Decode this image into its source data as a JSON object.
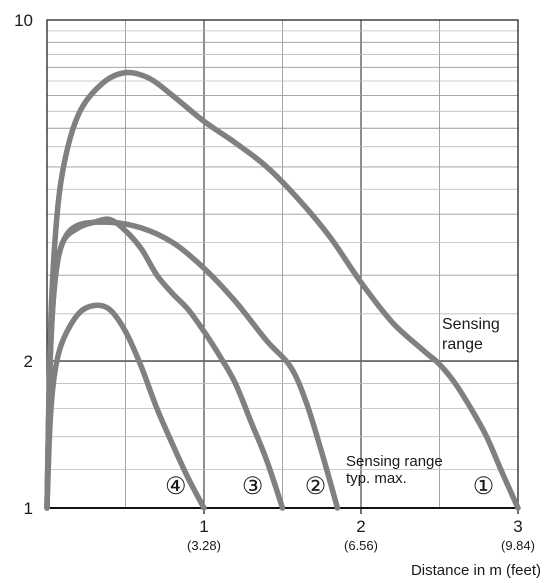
{
  "chart_data": {
    "type": "line",
    "title": "",
    "xlabel": "Distance in m (feet)",
    "ylabel": "",
    "xlim": [
      0,
      3
    ],
    "ylim": [
      1,
      10
    ],
    "y_scale": "log",
    "grid": true,
    "x_ticks": [
      {
        "value": 1,
        "label": "1",
        "sublabel": "(3.28)"
      },
      {
        "value": 2,
        "label": "2",
        "sublabel": "(6.56)"
      },
      {
        "value": 3,
        "label": "3",
        "sublabel": "(9.84)"
      }
    ],
    "y_ticks": [
      {
        "value": 1,
        "label": "1"
      },
      {
        "value": 2,
        "label": "2"
      },
      {
        "value": 10,
        "label": "10"
      }
    ],
    "reference_lines": [
      {
        "y": 2,
        "label_lines": [
          "Sensing",
          "range"
        ]
      },
      {
        "y": 1,
        "label_lines": [
          "Sensing range",
          "typ. max."
        ]
      }
    ],
    "series": [
      {
        "marker": "①",
        "color": "#808080",
        "points": [
          [
            0,
            1
          ],
          [
            0.02,
            2.2
          ],
          [
            0.05,
            3.5
          ],
          [
            0.1,
            4.9
          ],
          [
            0.2,
            6.4
          ],
          [
            0.35,
            7.4
          ],
          [
            0.5,
            7.8
          ],
          [
            0.65,
            7.6
          ],
          [
            0.8,
            7.0
          ],
          [
            1.0,
            6.2
          ],
          [
            1.2,
            5.6
          ],
          [
            1.4,
            5.0
          ],
          [
            1.6,
            4.3
          ],
          [
            1.8,
            3.6
          ],
          [
            2.0,
            2.9
          ],
          [
            2.2,
            2.4
          ],
          [
            2.4,
            2.1
          ],
          [
            2.5,
            1.97
          ],
          [
            2.6,
            1.8
          ],
          [
            2.7,
            1.6
          ],
          [
            2.8,
            1.4
          ],
          [
            2.9,
            1.18
          ],
          [
            3.0,
            1.0
          ]
        ]
      },
      {
        "marker": "②",
        "color": "#808080",
        "points": [
          [
            0,
            1
          ],
          [
            0.02,
            2.0
          ],
          [
            0.05,
            2.9
          ],
          [
            0.1,
            3.5
          ],
          [
            0.2,
            3.8
          ],
          [
            0.4,
            3.85
          ],
          [
            0.6,
            3.75
          ],
          [
            0.8,
            3.5
          ],
          [
            1.0,
            3.1
          ],
          [
            1.2,
            2.65
          ],
          [
            1.4,
            2.2
          ],
          [
            1.55,
            1.95
          ],
          [
            1.65,
            1.65
          ],
          [
            1.75,
            1.3
          ],
          [
            1.85,
            1.0
          ]
        ]
      },
      {
        "marker": "③",
        "color": "#808080",
        "points": [
          [
            0,
            1
          ],
          [
            0.02,
            2.0
          ],
          [
            0.05,
            2.9
          ],
          [
            0.1,
            3.5
          ],
          [
            0.2,
            3.75
          ],
          [
            0.3,
            3.85
          ],
          [
            0.4,
            3.9
          ],
          [
            0.5,
            3.7
          ],
          [
            0.6,
            3.4
          ],
          [
            0.7,
            3.0
          ],
          [
            0.8,
            2.75
          ],
          [
            0.9,
            2.55
          ],
          [
            1.0,
            2.3
          ],
          [
            1.1,
            2.05
          ],
          [
            1.2,
            1.8
          ],
          [
            1.3,
            1.5
          ],
          [
            1.4,
            1.25
          ],
          [
            1.5,
            1.0
          ]
        ]
      },
      {
        "marker": "④",
        "color": "#808080",
        "points": [
          [
            0,
            1
          ],
          [
            0.02,
            1.5
          ],
          [
            0.05,
            1.9
          ],
          [
            0.1,
            2.2
          ],
          [
            0.2,
            2.5
          ],
          [
            0.3,
            2.6
          ],
          [
            0.4,
            2.55
          ],
          [
            0.5,
            2.3
          ],
          [
            0.6,
            1.95
          ],
          [
            0.7,
            1.6
          ],
          [
            0.8,
            1.35
          ],
          [
            0.9,
            1.15
          ],
          [
            1.0,
            1.0
          ]
        ]
      }
    ]
  }
}
